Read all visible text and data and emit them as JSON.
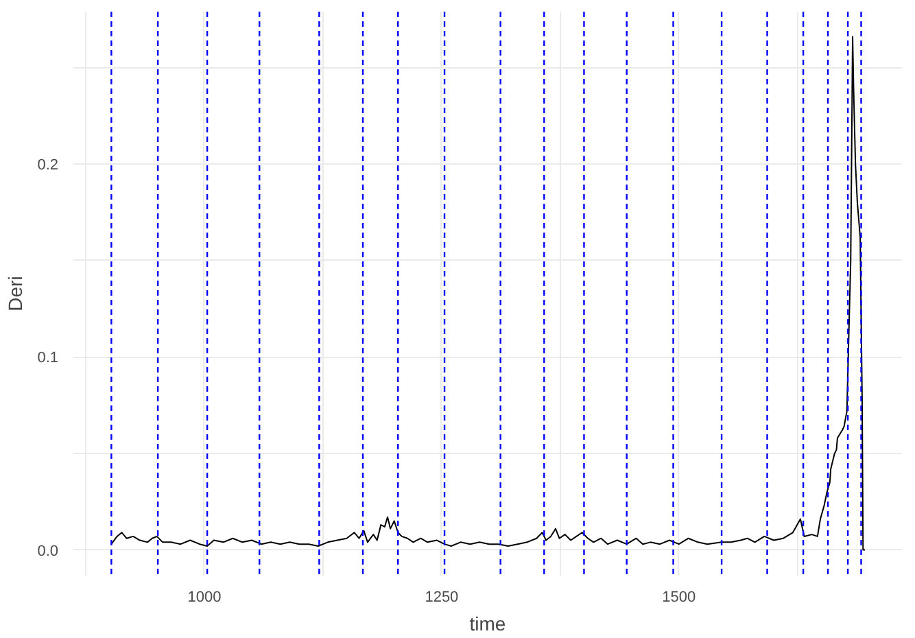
{
  "chart_data": {
    "type": "line",
    "xlabel": "time",
    "ylabel": "Deri",
    "xlim": [
      862,
      1735
    ],
    "ylim": [
      -0.0133,
      0.279
    ],
    "xticks": [
      {
        "value": 875,
        "label": null
      },
      1000,
      {
        "value": 1125,
        "label": null
      },
      1250,
      {
        "value": 1375,
        "label": null
      },
      1500,
      {
        "value": 1625,
        "label": null
      }
    ],
    "yticks": [
      {
        "value": 0,
        "label": "0.0"
      },
      {
        "value": 0.05,
        "label": null
      },
      0.1,
      {
        "value": 0.15,
        "label": null
      },
      0.2,
      {
        "value": 0.25,
        "label": null
      }
    ],
    "grid": true,
    "line_style": "solid",
    "marker": "none",
    "series": [
      {
        "color": "#000000",
        "x": [
          902,
          908,
          913,
          918,
          925,
          932,
          940,
          945,
          950,
          956,
          965,
          975,
          985,
          995,
          1003,
          1010,
          1020,
          1030,
          1040,
          1050,
          1060,
          1070,
          1080,
          1090,
          1100,
          1110,
          1120,
          1130,
          1140,
          1150,
          1158,
          1163,
          1168,
          1172,
          1178,
          1182,
          1186,
          1190,
          1193,
          1196,
          1200,
          1204,
          1208,
          1214,
          1220,
          1228,
          1235,
          1245,
          1253,
          1260,
          1270,
          1280,
          1290,
          1300,
          1310,
          1320,
          1330,
          1340,
          1350,
          1356,
          1360,
          1365,
          1370,
          1374,
          1380,
          1386,
          1392,
          1398,
          1404,
          1410,
          1418,
          1425,
          1435,
          1445,
          1455,
          1462,
          1470,
          1480,
          1490,
          1500,
          1510,
          1520,
          1530,
          1545,
          1555,
          1565,
          1572,
          1580,
          1590,
          1600,
          1610,
          1620,
          1628,
          1632,
          1640,
          1646,
          1649,
          1653,
          1656,
          1659,
          1660,
          1664,
          1666,
          1667,
          1672,
          1674,
          1677,
          1679,
          1681,
          1683,
          1684,
          1686,
          1688,
          1691,
          1693,
          1694,
          1696
        ],
        "values": [
          0.003,
          0.007,
          0.009,
          0.006,
          0.007,
          0.005,
          0.004,
          0.006,
          0.007,
          0.004,
          0.004,
          0.003,
          0.005,
          0.003,
          0.002,
          0.005,
          0.004,
          0.006,
          0.004,
          0.005,
          0.003,
          0.004,
          0.003,
          0.004,
          0.003,
          0.003,
          0.002,
          0.004,
          0.005,
          0.006,
          0.009,
          0.006,
          0.01,
          0.004,
          0.008,
          0.005,
          0.013,
          0.012,
          0.017,
          0.011,
          0.015,
          0.009,
          0.007,
          0.006,
          0.004,
          0.006,
          0.004,
          0.005,
          0.003,
          0.002,
          0.004,
          0.003,
          0.004,
          0.003,
          0.003,
          0.002,
          0.003,
          0.004,
          0.006,
          0.009,
          0.005,
          0.007,
          0.011,
          0.006,
          0.008,
          0.005,
          0.007,
          0.009,
          0.006,
          0.004,
          0.006,
          0.003,
          0.005,
          0.003,
          0.006,
          0.003,
          0.004,
          0.003,
          0.005,
          0.003,
          0.006,
          0.004,
          0.003,
          0.004,
          0.004,
          0.005,
          0.006,
          0.004,
          0.007,
          0.005,
          0.006,
          0.009,
          0.016,
          0.007,
          0.008,
          0.007,
          0.016,
          0.023,
          0.03,
          0.035,
          0.042,
          0.05,
          0.052,
          0.058,
          0.062,
          0.064,
          0.072,
          0.112,
          0.15,
          0.266,
          0.24,
          0.2,
          0.18,
          0.162,
          0.079,
          0.0,
          0.0
        ]
      }
    ],
    "ref_lines": [
      {
        "axis": "x",
        "value": 902,
        "color": "#0000ff",
        "line_style": "dashed"
      },
      {
        "axis": "x",
        "value": 951,
        "color": "#0000ff",
        "line_style": "dashed"
      },
      {
        "axis": "x",
        "value": 1003,
        "color": "#0000ff",
        "line_style": "dashed"
      },
      {
        "axis": "x",
        "value": 1058,
        "color": "#0000ff",
        "line_style": "dashed"
      },
      {
        "axis": "x",
        "value": 1121,
        "color": "#0000ff",
        "line_style": "dashed"
      },
      {
        "axis": "x",
        "value": 1167,
        "color": "#0000ff",
        "line_style": "dashed"
      },
      {
        "axis": "x",
        "value": 1204,
        "color": "#0000ff",
        "line_style": "dashed"
      },
      {
        "axis": "x",
        "value": 1253,
        "color": "#0000ff",
        "line_style": "dashed"
      },
      {
        "axis": "x",
        "value": 1312,
        "color": "#0000ff",
        "line_style": "dashed"
      },
      {
        "axis": "x",
        "value": 1358,
        "color": "#0000ff",
        "line_style": "dashed"
      },
      {
        "axis": "x",
        "value": 1400,
        "color": "#0000ff",
        "line_style": "dashed"
      },
      {
        "axis": "x",
        "value": 1445,
        "color": "#0000ff",
        "line_style": "dashed"
      },
      {
        "axis": "x",
        "value": 1494,
        "color": "#0000ff",
        "line_style": "dashed"
      },
      {
        "axis": "x",
        "value": 1545,
        "color": "#0000ff",
        "line_style": "dashed"
      },
      {
        "axis": "x",
        "value": 1593,
        "color": "#0000ff",
        "line_style": "dashed"
      },
      {
        "axis": "x",
        "value": 1631,
        "color": "#0000ff",
        "line_style": "dashed"
      },
      {
        "axis": "x",
        "value": 1657,
        "color": "#0000ff",
        "line_style": "dashed"
      },
      {
        "axis": "x",
        "value": 1678,
        "color": "#0000ff",
        "line_style": "dashed"
      },
      {
        "axis": "x",
        "value": 1692,
        "color": "#0000ff",
        "line_style": "dashed"
      }
    ]
  }
}
